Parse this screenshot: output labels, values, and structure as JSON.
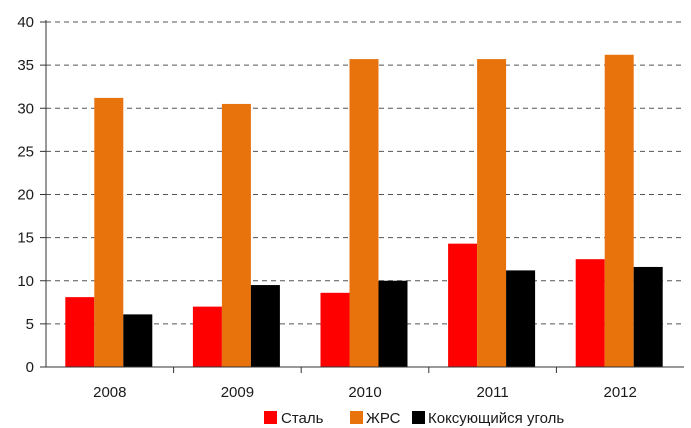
{
  "chart_data": {
    "type": "bar",
    "categories": [
      "2008",
      "2009",
      "2010",
      "2011",
      "2012"
    ],
    "series": [
      {
        "name": "Сталь",
        "color": "#ff0000",
        "values": [
          8.1,
          7.0,
          8.6,
          14.3,
          12.5
        ]
      },
      {
        "name": "ЖРС",
        "color": "#e8720c",
        "values": [
          31.2,
          30.5,
          35.7,
          35.7,
          36.2
        ]
      },
      {
        "name": "Коксующийся уголь",
        "color": "#000000",
        "values": [
          6.1,
          9.5,
          10.0,
          11.2,
          11.6
        ]
      }
    ],
    "y_ticks": [
      "0",
      "5",
      "10",
      "15",
      "20",
      "25",
      "30",
      "35",
      "40"
    ],
    "ylim": [
      0,
      40
    ],
    "grid": true,
    "legend_position": "bottom",
    "title": "",
    "xlabel": "",
    "ylabel": ""
  }
}
